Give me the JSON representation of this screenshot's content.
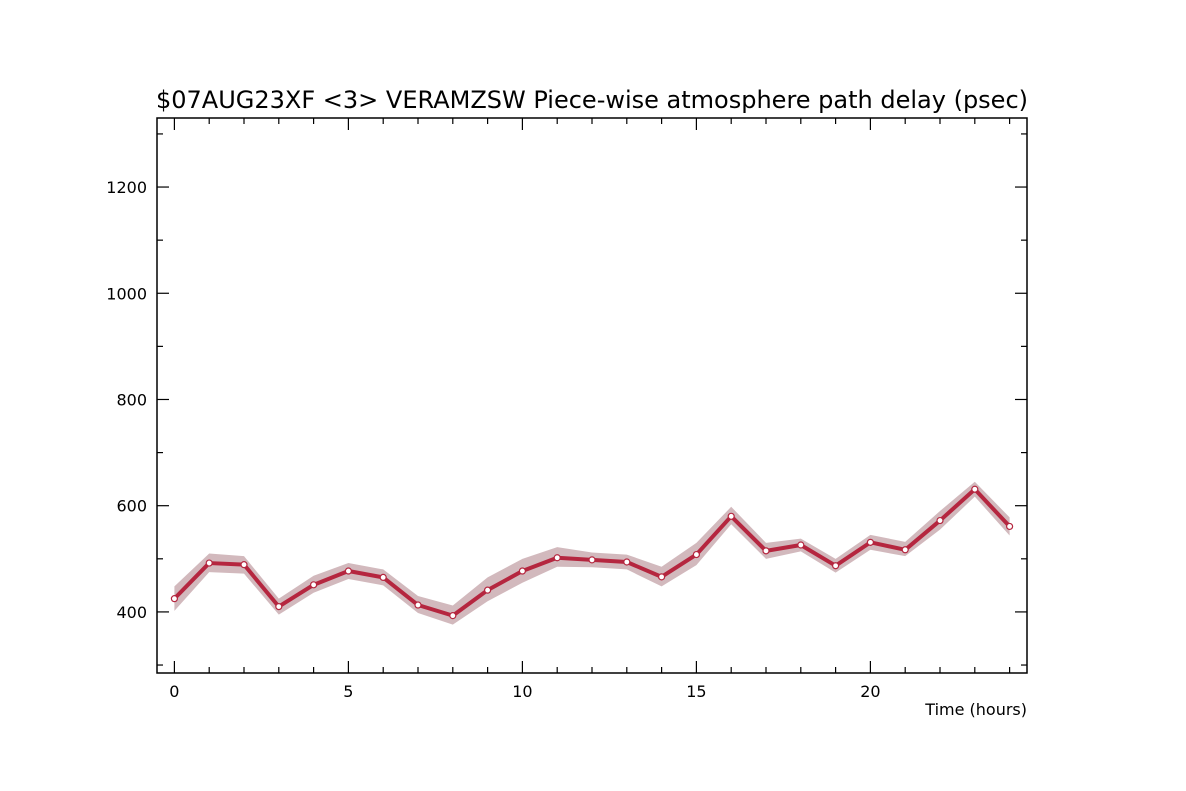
{
  "chart_data": {
    "type": "line",
    "title": "$07AUG23XF <3>  VERAMZSW  Piece-wise atmosphere path delay (psec)",
    "xlabel": "Time (hours)",
    "ylabel": "",
    "xlim": [
      -0.5,
      24.5
    ],
    "ylim": [
      285,
      1330
    ],
    "xticks": [
      0,
      5,
      10,
      15,
      20
    ],
    "yticks": [
      400,
      600,
      800,
      1000,
      1200
    ],
    "grid": false,
    "series": [
      {
        "x": [
          0,
          1,
          2,
          3,
          4,
          5,
          6,
          7,
          8,
          9,
          10,
          11,
          12,
          13,
          14,
          15,
          16,
          17,
          18,
          19,
          20,
          21,
          22,
          23,
          24
        ],
        "values": [
          425,
          492,
          489,
          410,
          451,
          477,
          465,
          413,
          393,
          441,
          477,
          502,
          498,
          494,
          466,
          508,
          580,
          515,
          526,
          487,
          531,
          517,
          572,
          631,
          561
        ],
        "band_upper": [
          448,
          510,
          505,
          425,
          468,
          492,
          480,
          430,
          412,
          465,
          500,
          522,
          512,
          508,
          485,
          530,
          598,
          530,
          538,
          500,
          545,
          532,
          590,
          645,
          578
        ],
        "band_lower": [
          402,
          475,
          472,
          395,
          436,
          462,
          450,
          398,
          376,
          420,
          455,
          485,
          484,
          480,
          448,
          488,
          565,
          500,
          514,
          474,
          517,
          505,
          555,
          617,
          544
        ]
      }
    ],
    "colors": {
      "line": "#b5263f",
      "marker_fill": "#ffffff",
      "band": "#d2b9bd",
      "axis": "#000000"
    }
  }
}
